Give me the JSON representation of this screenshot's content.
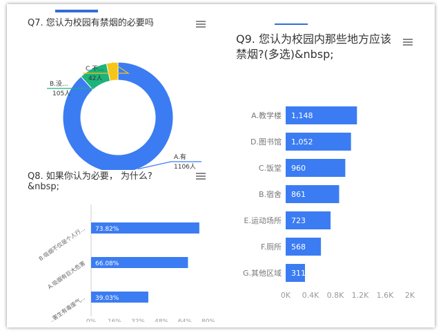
{
  "q7": {
    "title": "Q7. 您认为校园有禁烟的必要吗",
    "menu_icon": "hamburger-menu-icon",
    "chart_data": {
      "type": "pie",
      "categories": [
        "A.有",
        "B.没...",
        "C.不..."
      ],
      "values": [
        1106,
        105,
        42
      ],
      "value_labels": [
        "1106人",
        "105人",
        "42人"
      ],
      "colors": [
        "#3b7cf2",
        "#1db37a",
        "#f5c518"
      ]
    }
  },
  "q8": {
    "title": "Q8. 如果你认为必要， 为什么?&nbsp;",
    "menu_icon": "hamburger-menu-icon",
    "chart_data": {
      "type": "bar",
      "categories": [
        "B.吸烟不仅是个人行...",
        "A.吸烟有巨大危害",
        "...害生有毒废气..."
      ],
      "values": [
        73.82,
        66.08,
        39.03
      ],
      "value_labels": [
        "73.82%",
        "66.08%",
        "39.03%"
      ],
      "x_ticks": [
        "0%",
        "16%",
        "32%",
        "48%",
        "64%",
        "80%"
      ],
      "xlim": [
        0,
        80
      ],
      "color": "#3b7cf2"
    }
  },
  "q9": {
    "title": "Q9. 您认为校园内那些地方应该禁烟?(多选)&nbsp;",
    "menu_icon": "hamburger-menu-icon",
    "chart_data": {
      "type": "bar",
      "categories": [
        "A.教学楼",
        "D.图书馆",
        "C.饭堂",
        "B.宿舍",
        "E.运动场所",
        "F.厕所",
        "G.其他区域"
      ],
      "values": [
        1148,
        1052,
        960,
        861,
        723,
        568,
        311
      ],
      "value_labels": [
        "1,148",
        "1,052",
        "960",
        "861",
        "723",
        "568",
        "311"
      ],
      "x_ticks": [
        "0K",
        "0.4K",
        "0.8K",
        "1.2K",
        "1.6K",
        "2K"
      ],
      "xlim": [
        0,
        2000
      ],
      "color": "#3b7cf2"
    }
  }
}
